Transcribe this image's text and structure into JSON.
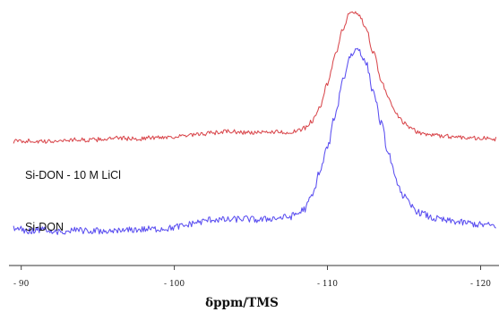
{
  "chart_data": {
    "type": "line",
    "title": "",
    "xlabel": "δppm/TMS",
    "ylabel": "",
    "x_reversed": false,
    "xlim": [
      89.2,
      121.2
    ],
    "ylim": [
      -0.05,
      1.0
    ],
    "x_ticks": [
      90,
      100,
      110,
      120
    ],
    "x_tick_labels": [
      "- 90",
      "- 100",
      "- 110",
      "- 120"
    ],
    "y_axis_visible": false,
    "grid": false,
    "legend": "none",
    "series": [
      {
        "name": "Si-DON - 10 M LiCl",
        "color": "#d9484d",
        "x": [
          89.5,
          90.5,
          91.5,
          92.5,
          93.5,
          94.5,
          95.5,
          96.5,
          97.5,
          98.5,
          99.5,
          100.5,
          101.5,
          102.5,
          103.5,
          104.5,
          105.5,
          106.5,
          107.5,
          108.0,
          108.5,
          109.0,
          109.5,
          110.0,
          110.5,
          111.0,
          111.5,
          112.0,
          112.5,
          113.0,
          113.5,
          114.0,
          114.5,
          115.0,
          115.5,
          116.0,
          117.0,
          118.0,
          119.0,
          120.0,
          121.0
        ],
        "y": [
          0.445,
          0.447,
          0.443,
          0.448,
          0.452,
          0.45,
          0.455,
          0.458,
          0.455,
          0.46,
          0.463,
          0.466,
          0.472,
          0.48,
          0.486,
          0.482,
          0.48,
          0.485,
          0.482,
          0.486,
          0.5,
          0.53,
          0.59,
          0.68,
          0.8,
          0.91,
          0.98,
          0.97,
          0.92,
          0.81,
          0.7,
          0.62,
          0.555,
          0.52,
          0.495,
          0.48,
          0.47,
          0.465,
          0.462,
          0.458,
          0.455
        ]
      },
      {
        "name": "Si-DON",
        "color": "#5a4ef0",
        "x": [
          89.5,
          90.5,
          91.5,
          92.5,
          93.5,
          94.5,
          95.5,
          96.5,
          97.5,
          98.5,
          99.5,
          100.5,
          101.5,
          102.5,
          103.5,
          104.5,
          105.5,
          106.5,
          107.5,
          108.0,
          108.5,
          109.0,
          109.5,
          110.0,
          110.5,
          111.0,
          111.5,
          112.0,
          112.5,
          113.0,
          113.5,
          114.0,
          114.5,
          115.0,
          115.5,
          116.0,
          117.0,
          118.0,
          119.0,
          120.0,
          121.0
        ],
        "y": [
          0.085,
          0.075,
          0.08,
          0.07,
          0.078,
          0.072,
          0.076,
          0.074,
          0.08,
          0.082,
          0.085,
          0.094,
          0.11,
          0.122,
          0.12,
          0.125,
          0.12,
          0.127,
          0.132,
          0.145,
          0.165,
          0.22,
          0.32,
          0.42,
          0.55,
          0.7,
          0.8,
          0.83,
          0.77,
          0.65,
          0.52,
          0.39,
          0.28,
          0.215,
          0.175,
          0.15,
          0.125,
          0.115,
          0.108,
          0.1,
          0.096
        ]
      }
    ]
  }
}
